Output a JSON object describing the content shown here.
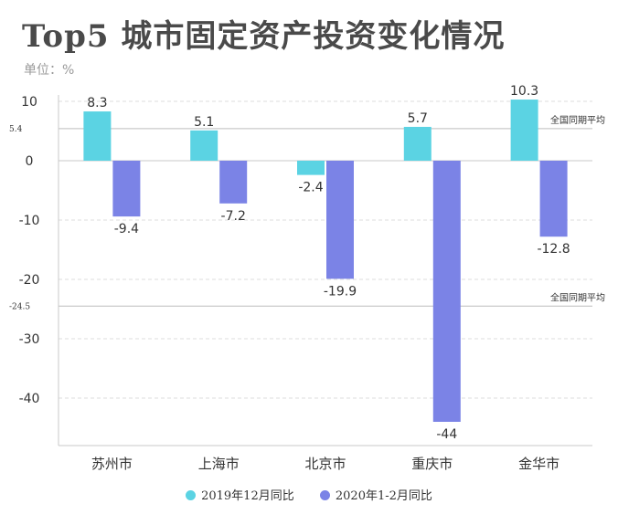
{
  "title": "Top5 城市固定资产投资变化情况",
  "unit_label": "单位：%",
  "colors": {
    "series1": "#5bd3e3",
    "series2": "#7b83e6",
    "axis": "#c8c8c8",
    "refline": "#bdbdbd"
  },
  "chart_data": {
    "type": "bar",
    "categories": [
      "苏州市",
      "上海市",
      "北京市",
      "重庆市",
      "金华市"
    ],
    "series": [
      {
        "name": "2019年12月同比",
        "values": [
          8.3,
          5.1,
          -2.4,
          5.7,
          10.3
        ]
      },
      {
        "name": "2020年1-2月同比",
        "values": [
          -9.4,
          -7.2,
          -19.9,
          -44,
          -12.8
        ]
      }
    ],
    "ylim": [
      -48,
      11
    ],
    "yticks": [
      10,
      0,
      -10,
      -20,
      -30,
      -40
    ],
    "grid": "dashed horizontal",
    "reference_lines": [
      {
        "value": 5.4,
        "label": "全国同期平均",
        "tick_label": "5.4"
      },
      {
        "value": -24.5,
        "label": "全国同期平均",
        "tick_label": "-24.5"
      }
    ],
    "legend": "bottom-center"
  }
}
